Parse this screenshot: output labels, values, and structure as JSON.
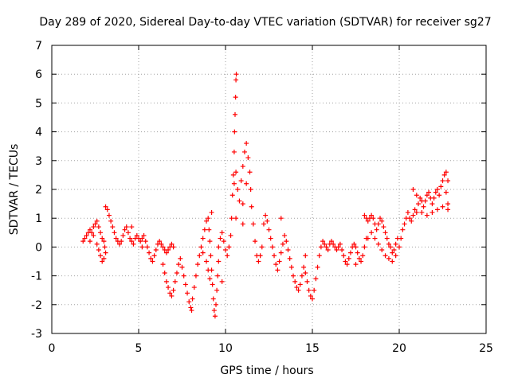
{
  "chart_data": {
    "type": "scatter",
    "title": "Day 289 of 2020, Sidereal Day-to-day VTEC variation (SDTVAR) for receiver sg27",
    "xlabel": "GPS time / hours",
    "ylabel": "SDTVAR / TECUs",
    "xlim": [
      0,
      25
    ],
    "ylim": [
      -3,
      7
    ],
    "xticks": [
      0,
      5,
      10,
      15,
      20,
      25
    ],
    "yticks": [
      -3,
      -2,
      -1,
      0,
      1,
      2,
      3,
      4,
      5,
      6,
      7
    ],
    "xtick_labels": [
      "0",
      "5",
      "10",
      "15",
      "20",
      "25"
    ],
    "ytick_labels": [
      "-3",
      "-2",
      "-1",
      "0",
      "1",
      "2",
      "3",
      "4",
      "5",
      "6",
      "7"
    ],
    "grid": true,
    "marker": "plus",
    "color": "#ff0000",
    "series": [
      {
        "name": "SDTVAR",
        "points": [
          [
            1.8,
            0.2
          ],
          [
            1.9,
            0.3
          ],
          [
            2.0,
            0.4
          ],
          [
            2.1,
            0.5
          ],
          [
            2.2,
            0.6
          ],
          [
            2.3,
            0.5
          ],
          [
            2.4,
            0.7
          ],
          [
            2.5,
            0.8
          ],
          [
            2.6,
            0.9
          ],
          [
            2.7,
            0.7
          ],
          [
            2.8,
            0.5
          ],
          [
            2.9,
            0.3
          ],
          [
            3.0,
            0.2
          ],
          [
            3.05,
            0.0
          ],
          [
            3.1,
            -0.2
          ],
          [
            3.0,
            -0.4
          ],
          [
            2.9,
            -0.5
          ],
          [
            2.8,
            -0.3
          ],
          [
            2.7,
            -0.1
          ],
          [
            2.6,
            0.1
          ],
          [
            3.1,
            1.4
          ],
          [
            3.2,
            1.3
          ],
          [
            3.3,
            1.1
          ],
          [
            3.4,
            0.9
          ],
          [
            3.5,
            0.7
          ],
          [
            3.6,
            0.5
          ],
          [
            3.7,
            0.3
          ],
          [
            3.8,
            0.2
          ],
          [
            3.9,
            0.1
          ],
          [
            4.0,
            0.2
          ],
          [
            4.1,
            0.4
          ],
          [
            4.2,
            0.6
          ],
          [
            4.3,
            0.7
          ],
          [
            4.4,
            0.5
          ],
          [
            4.5,
            0.3
          ],
          [
            4.6,
            0.2
          ],
          [
            4.7,
            0.1
          ],
          [
            4.8,
            0.3
          ],
          [
            4.9,
            0.4
          ],
          [
            5.0,
            0.3
          ],
          [
            5.1,
            0.2
          ],
          [
            5.2,
            0.3
          ],
          [
            5.3,
            0.4
          ],
          [
            5.4,
            0.2
          ],
          [
            5.5,
            0.0
          ],
          [
            5.6,
            -0.2
          ],
          [
            5.7,
            -0.4
          ],
          [
            5.8,
            -0.5
          ],
          [
            5.9,
            -0.3
          ],
          [
            6.0,
            -0.1
          ],
          [
            6.1,
            0.1
          ],
          [
            6.2,
            0.2
          ],
          [
            6.3,
            0.1
          ],
          [
            6.4,
            0.0
          ],
          [
            6.5,
            -0.1
          ],
          [
            6.6,
            -0.2
          ],
          [
            6.7,
            -0.1
          ],
          [
            6.8,
            0.0
          ],
          [
            6.9,
            0.1
          ],
          [
            7.0,
            0.0
          ],
          [
            6.4,
            -0.6
          ],
          [
            6.5,
            -0.9
          ],
          [
            6.6,
            -1.2
          ],
          [
            6.7,
            -1.4
          ],
          [
            6.8,
            -1.6
          ],
          [
            6.9,
            -1.7
          ],
          [
            7.0,
            -1.5
          ],
          [
            7.1,
            -1.2
          ],
          [
            7.2,
            -0.9
          ],
          [
            7.3,
            -0.6
          ],
          [
            7.4,
            -0.4
          ],
          [
            7.5,
            -0.7
          ],
          [
            7.6,
            -1.0
          ],
          [
            7.7,
            -1.3
          ],
          [
            7.8,
            -1.6
          ],
          [
            7.9,
            -1.9
          ],
          [
            8.0,
            -2.1
          ],
          [
            8.05,
            -2.2
          ],
          [
            8.1,
            -1.8
          ],
          [
            8.2,
            -1.4
          ],
          [
            8.3,
            -1.0
          ],
          [
            8.4,
            -0.6
          ],
          [
            8.5,
            -0.3
          ],
          [
            8.6,
            0.0
          ],
          [
            8.7,
            0.3
          ],
          [
            8.8,
            0.6
          ],
          [
            8.9,
            0.9
          ],
          [
            9.0,
            1.0
          ],
          [
            9.05,
            0.6
          ],
          [
            9.1,
            0.2
          ],
          [
            9.15,
            -0.3
          ],
          [
            9.2,
            -0.8
          ],
          [
            9.25,
            -1.3
          ],
          [
            9.3,
            -1.8
          ],
          [
            9.35,
            -2.2
          ],
          [
            9.4,
            -2.4
          ],
          [
            9.45,
            -2.0
          ],
          [
            9.5,
            -1.5
          ],
          [
            9.55,
            -1.0
          ],
          [
            9.6,
            -0.5
          ],
          [
            8.9,
            -0.5
          ],
          [
            9.0,
            -0.8
          ],
          [
            9.1,
            -1.1
          ],
          [
            9.6,
            0.0
          ],
          [
            9.7,
            0.3
          ],
          [
            9.8,
            0.5
          ],
          [
            9.9,
            0.2
          ],
          [
            10.0,
            -0.1
          ],
          [
            10.1,
            -0.3
          ],
          [
            10.2,
            0.0
          ],
          [
            10.3,
            0.4
          ],
          [
            10.35,
            1.0
          ],
          [
            10.4,
            1.8
          ],
          [
            10.45,
            2.5
          ],
          [
            10.5,
            3.3
          ],
          [
            10.52,
            4.0
          ],
          [
            10.55,
            4.6
          ],
          [
            10.58,
            5.2
          ],
          [
            10.6,
            5.8
          ],
          [
            10.62,
            6.0
          ],
          [
            10.5,
            2.2
          ],
          [
            10.6,
            2.6
          ],
          [
            10.7,
            2.0
          ],
          [
            10.8,
            1.6
          ],
          [
            10.9,
            2.3
          ],
          [
            11.0,
            2.8
          ],
          [
            11.1,
            3.3
          ],
          [
            11.2,
            3.6
          ],
          [
            11.3,
            3.1
          ],
          [
            11.4,
            2.6
          ],
          [
            11.45,
            2.0
          ],
          [
            11.5,
            1.4
          ],
          [
            11.6,
            0.8
          ],
          [
            11.7,
            0.2
          ],
          [
            11.8,
            -0.3
          ],
          [
            11.9,
            -0.5
          ],
          [
            12.0,
            -0.3
          ],
          [
            12.1,
            0.0
          ],
          [
            10.6,
            1.0
          ],
          [
            11.0,
            1.5
          ],
          [
            12.2,
            0.8
          ],
          [
            12.3,
            1.1
          ],
          [
            12.4,
            0.9
          ],
          [
            12.5,
            0.6
          ],
          [
            12.6,
            0.3
          ],
          [
            12.7,
            0.0
          ],
          [
            12.8,
            -0.3
          ],
          [
            12.9,
            -0.6
          ],
          [
            13.0,
            -0.8
          ],
          [
            13.1,
            -0.5
          ],
          [
            13.2,
            -0.2
          ],
          [
            13.3,
            0.1
          ],
          [
            13.4,
            0.4
          ],
          [
            13.5,
            0.2
          ],
          [
            13.6,
            -0.1
          ],
          [
            13.7,
            -0.4
          ],
          [
            13.8,
            -0.7
          ],
          [
            13.9,
            -1.0
          ],
          [
            14.0,
            -1.2
          ],
          [
            14.1,
            -1.4
          ],
          [
            14.2,
            -1.5
          ],
          [
            14.3,
            -1.3
          ],
          [
            14.4,
            -1.0
          ],
          [
            14.5,
            -0.7
          ],
          [
            14.6,
            -0.9
          ],
          [
            14.7,
            -1.2
          ],
          [
            14.8,
            -1.5
          ],
          [
            14.9,
            -1.7
          ],
          [
            15.0,
            -1.8
          ],
          [
            15.1,
            -1.5
          ],
          [
            15.2,
            -1.1
          ],
          [
            15.3,
            -0.7
          ],
          [
            15.4,
            -0.3
          ],
          [
            15.5,
            0.0
          ],
          [
            15.6,
            0.2
          ],
          [
            15.7,
            0.1
          ],
          [
            15.8,
            0.0
          ],
          [
            15.9,
            -0.1
          ],
          [
            16.0,
            0.1
          ],
          [
            16.1,
            0.2
          ],
          [
            16.2,
            0.1
          ],
          [
            16.3,
            0.0
          ],
          [
            16.4,
            -0.1
          ],
          [
            16.5,
            0.0
          ],
          [
            16.6,
            0.1
          ],
          [
            16.7,
            -0.1
          ],
          [
            16.8,
            -0.3
          ],
          [
            16.9,
            -0.5
          ],
          [
            17.0,
            -0.6
          ],
          [
            17.1,
            -0.4
          ],
          [
            17.2,
            -0.2
          ],
          [
            17.3,
            0.0
          ],
          [
            17.4,
            0.1
          ],
          [
            17.5,
            0.0
          ],
          [
            17.6,
            -0.2
          ],
          [
            17.7,
            -0.4
          ],
          [
            17.8,
            -0.5
          ],
          [
            17.9,
            -0.3
          ],
          [
            18.0,
            0.0
          ],
          [
            18.1,
            0.3
          ],
          [
            18.0,
            1.1
          ],
          [
            18.1,
            1.0
          ],
          [
            18.2,
            0.9
          ],
          [
            18.3,
            1.0
          ],
          [
            18.4,
            1.1
          ],
          [
            18.5,
            1.0
          ],
          [
            18.6,
            0.8
          ],
          [
            18.7,
            0.6
          ],
          [
            18.8,
            0.8
          ],
          [
            18.9,
            1.0
          ],
          [
            19.0,
            0.9
          ],
          [
            19.1,
            0.7
          ],
          [
            19.2,
            0.5
          ],
          [
            19.3,
            0.3
          ],
          [
            19.4,
            0.1
          ],
          [
            19.5,
            0.0
          ],
          [
            19.6,
            -0.2
          ],
          [
            19.7,
            -0.1
          ],
          [
            19.8,
            0.1
          ],
          [
            19.9,
            0.3
          ],
          [
            18.2,
            0.3
          ],
          [
            18.4,
            0.5
          ],
          [
            18.6,
            0.3
          ],
          [
            18.8,
            0.1
          ],
          [
            19.0,
            -0.1
          ],
          [
            19.2,
            -0.3
          ],
          [
            19.4,
            -0.4
          ],
          [
            19.6,
            -0.5
          ],
          [
            19.8,
            -0.3
          ],
          [
            20.0,
            0.0
          ],
          [
            20.1,
            0.3
          ],
          [
            20.2,
            0.6
          ],
          [
            20.3,
            0.8
          ],
          [
            20.4,
            1.0
          ],
          [
            20.5,
            1.2
          ],
          [
            20.6,
            1.0
          ],
          [
            20.7,
            0.9
          ],
          [
            20.8,
            1.1
          ],
          [
            20.9,
            1.3
          ],
          [
            21.0,
            1.2
          ],
          [
            21.1,
            1.5
          ],
          [
            21.2,
            1.7
          ],
          [
            21.3,
            1.6
          ],
          [
            21.4,
            1.4
          ],
          [
            21.5,
            1.6
          ],
          [
            21.6,
            1.8
          ],
          [
            21.7,
            1.9
          ],
          [
            21.8,
            1.7
          ],
          [
            21.9,
            1.5
          ],
          [
            22.0,
            1.7
          ],
          [
            22.1,
            1.9
          ],
          [
            22.2,
            2.0
          ],
          [
            22.3,
            1.8
          ],
          [
            22.4,
            2.1
          ],
          [
            22.5,
            2.3
          ],
          [
            22.6,
            2.5
          ],
          [
            22.7,
            2.6
          ],
          [
            22.8,
            2.3
          ],
          [
            22.7,
            1.9
          ],
          [
            22.8,
            1.5
          ],
          [
            20.8,
            2.0
          ],
          [
            21.0,
            1.8
          ],
          [
            21.3,
            1.2
          ],
          [
            21.6,
            1.1
          ],
          [
            21.9,
            1.2
          ],
          [
            22.2,
            1.3
          ],
          [
            22.5,
            1.4
          ],
          [
            22.8,
            1.3
          ],
          [
            2.2,
            0.2
          ],
          [
            2.4,
            0.4
          ],
          [
            4.6,
            0.7
          ],
          [
            5.2,
            0.0
          ],
          [
            8.7,
            -0.2
          ],
          [
            9.8,
            -1.2
          ],
          [
            9.2,
            1.2
          ],
          [
            11.2,
            2.2
          ],
          [
            11.0,
            0.8
          ],
          [
            13.2,
            1.0
          ],
          [
            14.6,
            -0.3
          ],
          [
            17.5,
            -0.6
          ]
        ]
      }
    ]
  }
}
